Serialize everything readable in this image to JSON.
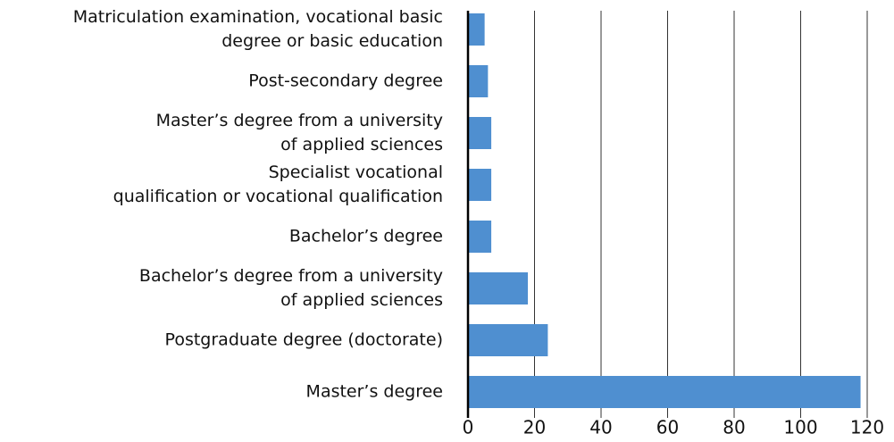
{
  "chart_data": {
    "type": "barh",
    "categories": [
      "Matriculation examination, vocational basic\ndegree or basic education",
      "Post-secondary degree",
      "Master’s degree from a university\nof applied sciences",
      "Specialist vocational\nqualification or vocational qualification",
      "Bachelor’s degree",
      "Bachelor’s degree from a university\nof applied sciences",
      "Postgraduate degree (doctorate)",
      "Master’s degree"
    ],
    "values": [
      5,
      6,
      7,
      7,
      7,
      18,
      24,
      118
    ],
    "color": "#4f8fd0",
    "xlim": [
      0,
      120
    ],
    "xticks": [
      0,
      20,
      40,
      60,
      80,
      100,
      120
    ],
    "grid": true
  }
}
